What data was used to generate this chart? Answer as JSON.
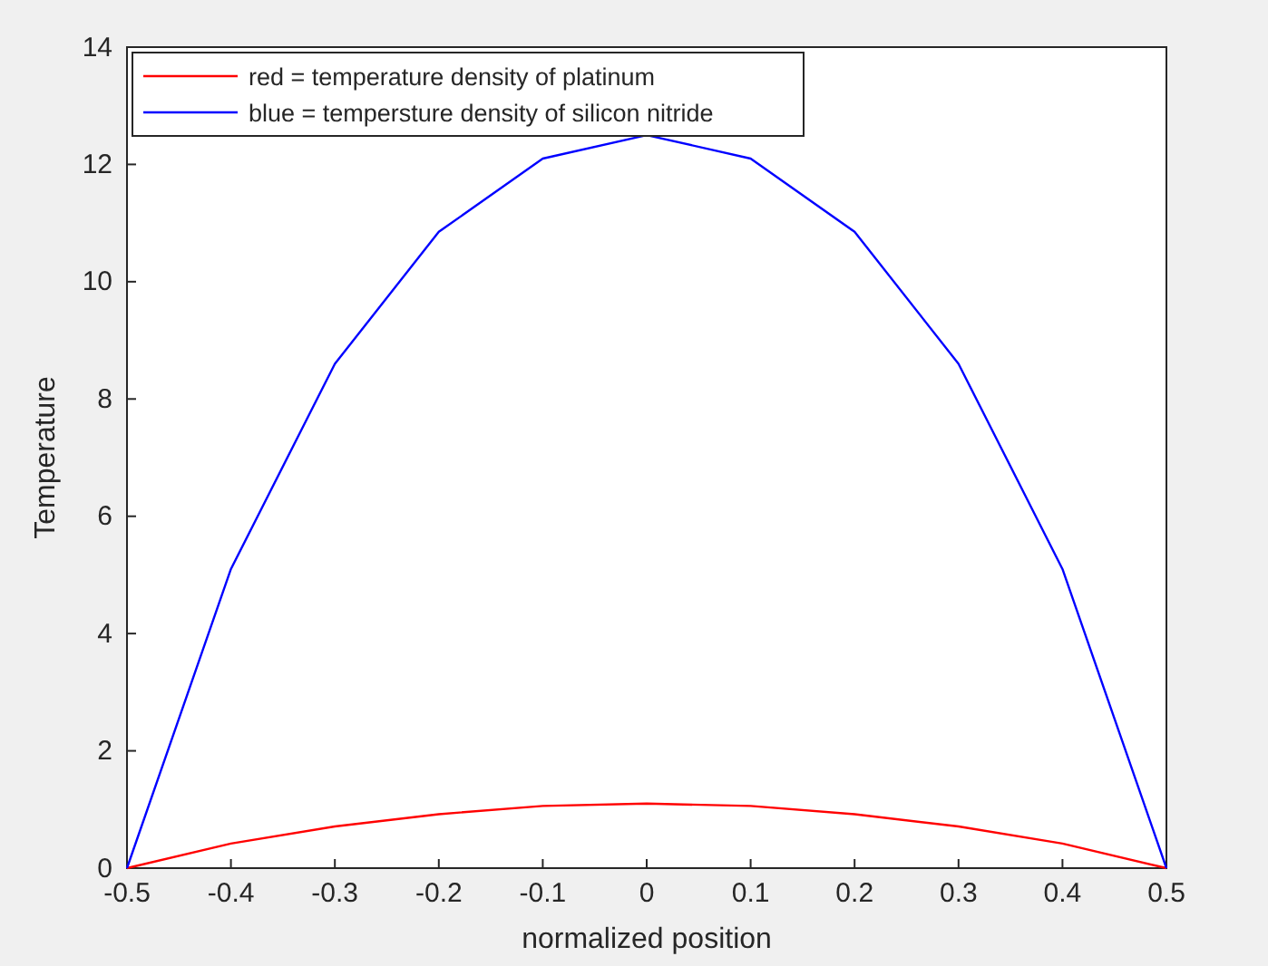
{
  "chart_data": {
    "type": "line",
    "xlabel": "normalized position",
    "ylabel": "Temperature",
    "x": [
      -0.5,
      -0.4,
      -0.3,
      -0.2,
      -0.1,
      0,
      0.1,
      0.2,
      0.3,
      0.4,
      0.5
    ],
    "series": [
      {
        "name": "red = temperature density of platinum",
        "color": "#ff0000",
        "values": [
          0,
          0.42,
          0.71,
          0.92,
          1.06,
          1.1,
          1.06,
          0.92,
          0.71,
          0.42,
          0
        ]
      },
      {
        "name": "blue = tempersture density of silicon nitride",
        "color": "#0000ff",
        "values": [
          0,
          5.1,
          8.6,
          10.85,
          12.1,
          12.5,
          12.1,
          10.85,
          8.6,
          5.1,
          0
        ]
      }
    ],
    "xlim": [
      -0.5,
      0.5
    ],
    "xticks": [
      -0.5,
      -0.4,
      -0.3,
      -0.2,
      -0.1,
      0,
      0.1,
      0.2,
      0.3,
      0.4,
      0.5
    ],
    "ylim": [
      0,
      14
    ],
    "yticks": [
      0,
      2,
      4,
      6,
      8,
      10,
      12,
      14
    ],
    "legend": "top left",
    "grid": false,
    "marker": "none",
    "line_style": "solid"
  }
}
